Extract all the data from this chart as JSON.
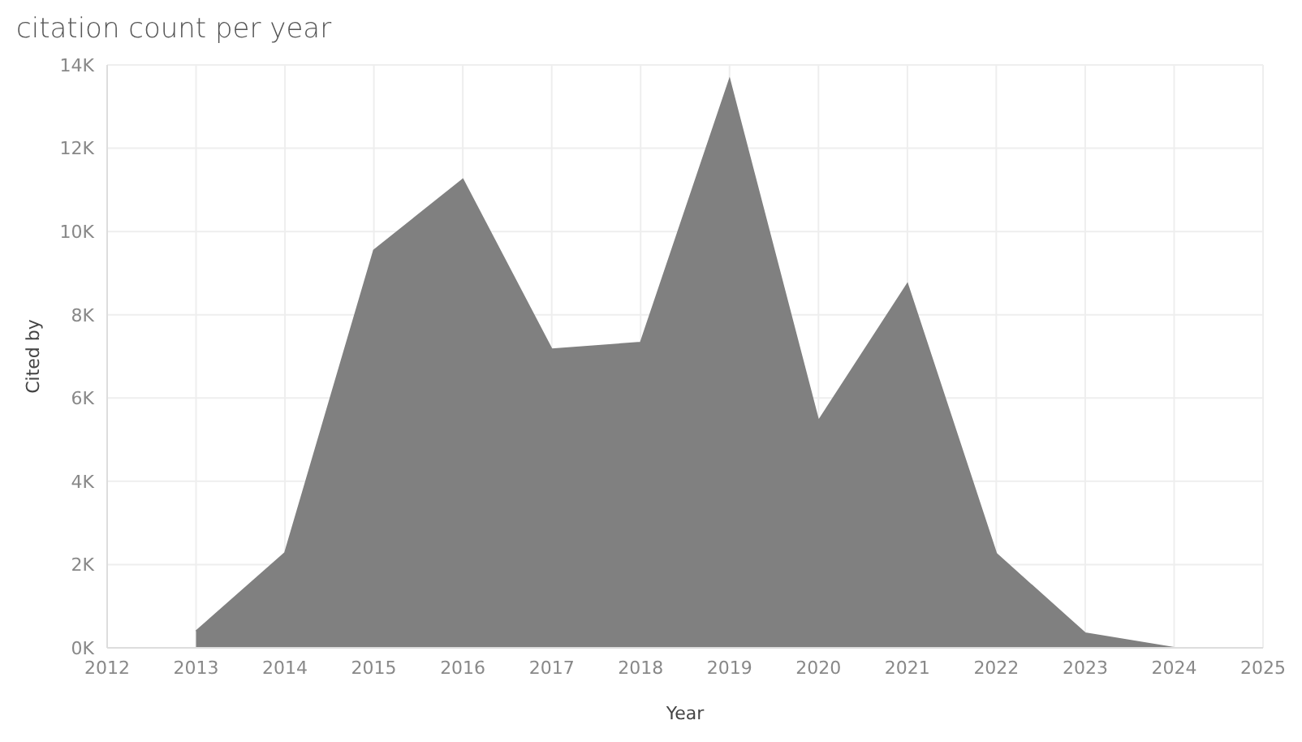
{
  "chart_data": {
    "type": "area",
    "title": "citation count per year",
    "xlabel": "Year",
    "ylabel": "Cited by",
    "x": [
      2013,
      2014,
      2015,
      2016,
      2017,
      2018,
      2019,
      2020,
      2021,
      2022,
      2023,
      2024
    ],
    "values": [
      400,
      2280,
      9550,
      11250,
      7170,
      7330,
      13650,
      5450,
      8740,
      2260,
      350,
      0
    ],
    "color": "#808080",
    "xlim": [
      2012,
      2025
    ],
    "xticks": [
      2012,
      2013,
      2014,
      2015,
      2016,
      2017,
      2018,
      2019,
      2020,
      2021,
      2022,
      2023,
      2024,
      2025
    ],
    "ylim": [
      0,
      14000
    ],
    "yticks": [
      {
        "value": 0,
        "label": "0K"
      },
      {
        "value": 2000,
        "label": "2K"
      },
      {
        "value": 4000,
        "label": "4K"
      },
      {
        "value": 6000,
        "label": "6K"
      },
      {
        "value": 8000,
        "label": "8K"
      },
      {
        "value": 10000,
        "label": "10K"
      },
      {
        "value": 12000,
        "label": "12K"
      },
      {
        "value": 14000,
        "label": "14K"
      }
    ],
    "grid": true
  }
}
